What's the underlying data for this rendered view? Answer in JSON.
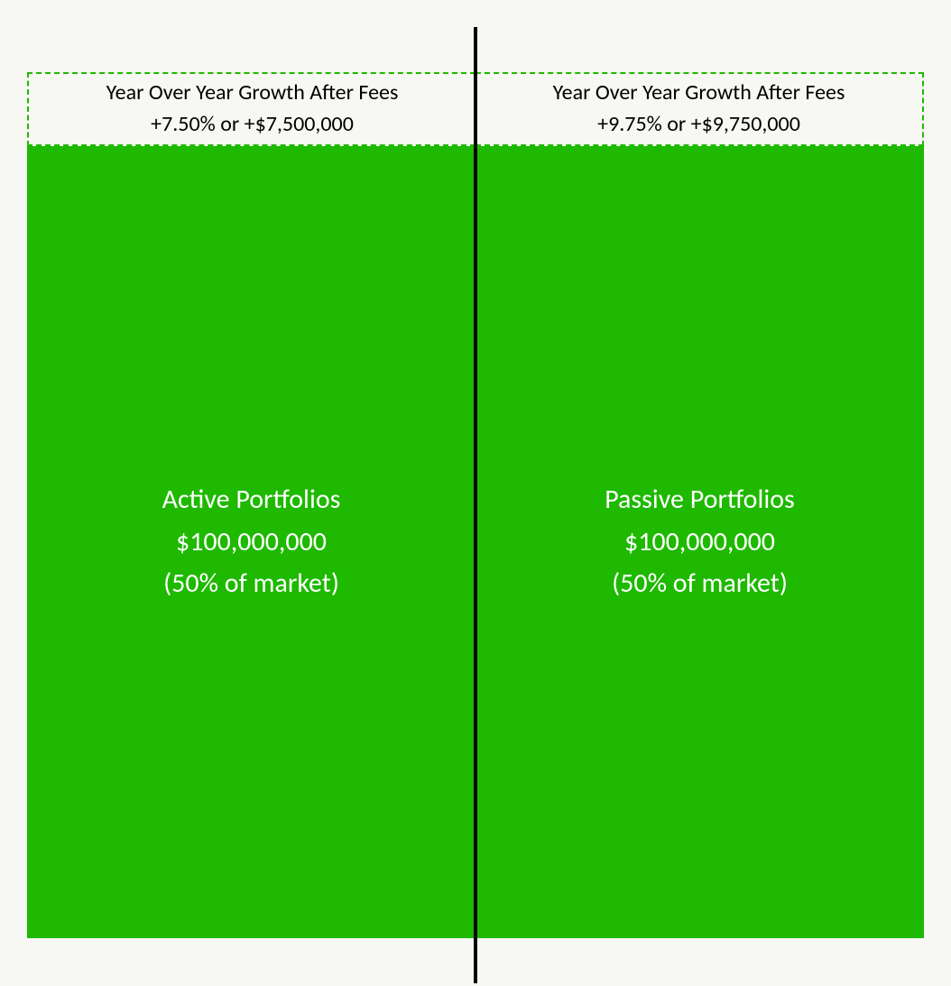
{
  "diagram": {
    "type": "comparison-infographic",
    "background_color": "#f7f7f3",
    "portfolio_fill_color": "#1eb900",
    "growth_border_color": "#1eb900",
    "divider_color": "#000000",
    "growth_text_color": "#000000",
    "portfolio_text_color": "#ffffff",
    "growth_fontsize": 24,
    "portfolio_fontsize": 30,
    "left": {
      "growth_title": "Year Over Year Growth After Fees",
      "growth_value": "+7.50% or +$7,500,000",
      "portfolio_title": "Active Portfolios",
      "portfolio_amount": "$100,000,000",
      "portfolio_share": "(50% of market)"
    },
    "right": {
      "growth_title": "Year Over Year Growth After Fees",
      "growth_value": "+9.75% or +$9,750,000",
      "portfolio_title": "Passive Portfolios",
      "portfolio_amount": "$100,000,000",
      "portfolio_share": "(50% of market)"
    }
  }
}
